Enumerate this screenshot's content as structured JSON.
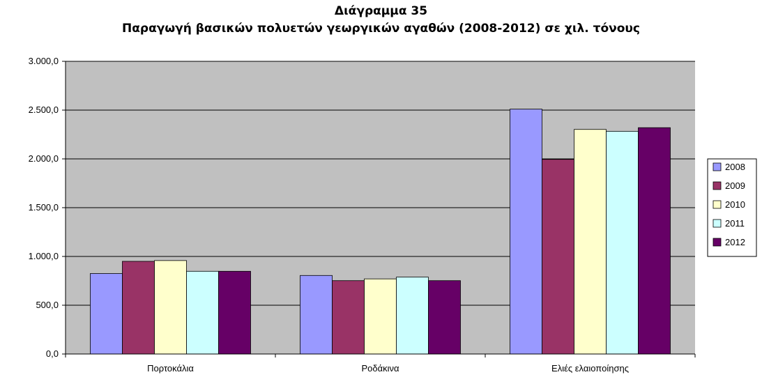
{
  "chart_data": {
    "type": "bar",
    "title": "Διάγραμμα 35",
    "subtitle": "Παραγωγή βασικών πολυετών γεωργικών αγαθών (2008-2012) σε χιλ. τόνους",
    "xlabel": "",
    "ylabel": "",
    "ylim": [
      0,
      3000
    ],
    "yticks": [
      "0,0",
      "500,0",
      "1.000,0",
      "1.500,0",
      "2.000,0",
      "2.500,0",
      "3.000,0"
    ],
    "ytick_values": [
      0,
      500,
      1000,
      1500,
      2000,
      2500,
      3000
    ],
    "grid": true,
    "legend_position": "right",
    "categories": [
      "Πορτοκάλια",
      "Ροδάκινα",
      "Ελιές ελαιοποίησης"
    ],
    "series": [
      {
        "name": "2008",
        "color": "#9999ff",
        "values": [
          825,
          805,
          2510
        ]
      },
      {
        "name": "2009",
        "color": "#993366",
        "values": [
          950,
          752,
          1995
        ]
      },
      {
        "name": "2010",
        "color": "#ffffcc",
        "values": [
          958,
          770,
          2302
        ]
      },
      {
        "name": "2011",
        "color": "#ccffff",
        "values": [
          848,
          788,
          2283
        ]
      },
      {
        "name": "2012",
        "color": "#660066",
        "values": [
          848,
          752,
          2320
        ]
      }
    ],
    "plot_background": "#c0c0c0"
  }
}
